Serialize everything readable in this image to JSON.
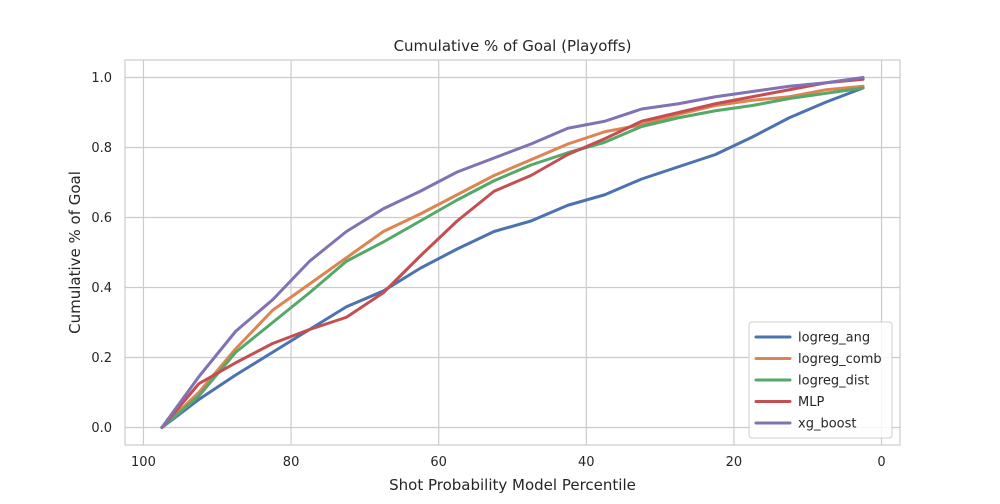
{
  "chart_data": {
    "type": "line",
    "title": "Cumulative % of Goal (Playoffs)",
    "xlabel": "Shot Probability Model Percentile",
    "ylabel": "Cumulative % of Goal",
    "xlim": [
      102.5,
      -2.5
    ],
    "ylim": [
      -0.05,
      1.05
    ],
    "x_ticks": [
      100,
      80,
      60,
      40,
      20,
      0
    ],
    "x_tick_labels": [
      "100",
      "80",
      "60",
      "40",
      "20",
      "0"
    ],
    "y_ticks": [
      0.0,
      0.2,
      0.4,
      0.6,
      0.8,
      1.0
    ],
    "y_tick_labels": [
      "0.0",
      "0.2",
      "0.4",
      "0.6",
      "0.8",
      "1.0"
    ],
    "grid": true,
    "legend_position": "lower-right",
    "x": [
      97.5,
      92.5,
      87.5,
      82.5,
      77.5,
      72.5,
      67.5,
      62.5,
      57.5,
      52.5,
      47.5,
      42.5,
      37.5,
      32.5,
      27.5,
      22.5,
      17.5,
      12.5,
      7.5,
      2.5
    ],
    "series": [
      {
        "name": "logreg_ang",
        "color": "#4c72b0",
        "values": [
          0.0,
          0.08,
          0.15,
          0.215,
          0.28,
          0.345,
          0.39,
          0.455,
          0.51,
          0.56,
          0.59,
          0.635,
          0.665,
          0.71,
          0.745,
          0.78,
          0.83,
          0.885,
          0.93,
          0.97
        ]
      },
      {
        "name": "logreg_comb",
        "color": "#dd8452",
        "values": [
          0.0,
          0.1,
          0.225,
          0.335,
          0.41,
          0.485,
          0.56,
          0.61,
          0.665,
          0.72,
          0.765,
          0.81,
          0.845,
          0.865,
          0.895,
          0.92,
          0.935,
          0.945,
          0.965,
          0.975
        ]
      },
      {
        "name": "logreg_dist",
        "color": "#55a868",
        "values": [
          0.0,
          0.09,
          0.215,
          0.3,
          0.385,
          0.475,
          0.53,
          0.59,
          0.65,
          0.705,
          0.75,
          0.785,
          0.815,
          0.86,
          0.885,
          0.905,
          0.92,
          0.94,
          0.955,
          0.97
        ]
      },
      {
        "name": "MLP",
        "color": "#c44e52",
        "values": [
          0.0,
          0.125,
          0.185,
          0.24,
          0.28,
          0.315,
          0.385,
          0.49,
          0.59,
          0.675,
          0.72,
          0.78,
          0.825,
          0.875,
          0.9,
          0.925,
          0.945,
          0.965,
          0.985,
          0.995
        ]
      },
      {
        "name": "xg_boost",
        "color": "#8172b3",
        "values": [
          0.0,
          0.145,
          0.275,
          0.365,
          0.475,
          0.56,
          0.625,
          0.675,
          0.73,
          0.77,
          0.81,
          0.855,
          0.875,
          0.91,
          0.925,
          0.945,
          0.96,
          0.975,
          0.985,
          1.0
        ]
      }
    ]
  }
}
